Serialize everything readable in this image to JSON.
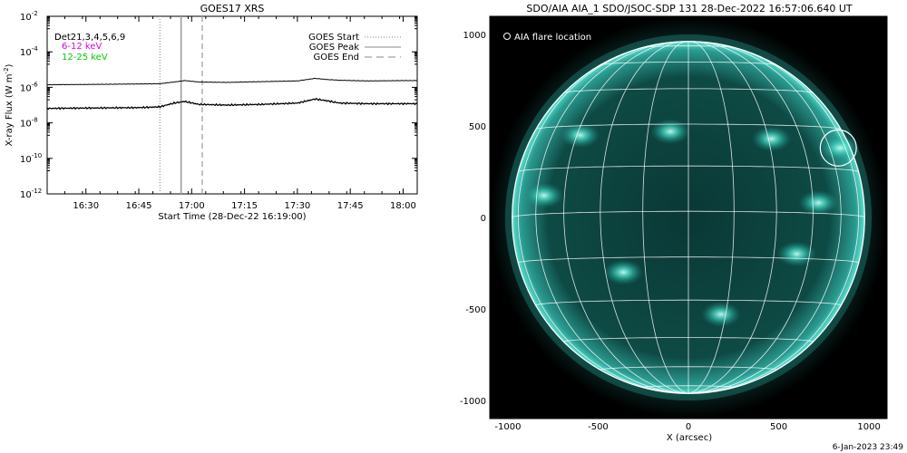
{
  "chart_data": [
    {
      "type": "line",
      "title": "GOES17 XRS",
      "xlabel": "Start Time (28-Dec-22 16:19:00)",
      "ylabel": "X-ray Flux (W m",
      "ylabel_sup": "-2",
      "ylabel_close": ")",
      "xlim": [
        "16:19",
        "18:04"
      ],
      "ylim": [
        1e-12,
        0.01
      ],
      "yscale": "log",
      "x_ticks": [
        "16:30",
        "16:45",
        "17:00",
        "17:15",
        "17:30",
        "17:45",
        "18:00"
      ],
      "y_ticks": [
        {
          "value": 0.01,
          "exp": "-2"
        },
        {
          "value": 0.0001,
          "exp": "-4"
        },
        {
          "value": 1e-06,
          "exp": "-6"
        },
        {
          "value": 1e-08,
          "exp": "-8"
        },
        {
          "value": 1e-10,
          "exp": "-10"
        },
        {
          "value": 1e-12,
          "exp": "-12"
        }
      ],
      "tick_base": "10",
      "legend_left": [
        {
          "text": "D",
          "color": "#000000"
        },
        {
          "text": "Det21,3,4,5,6,9",
          "color": "#000000"
        },
        {
          "text": "6-12 keV",
          "color": "#dd00dd"
        },
        {
          "text": "12-25 keV",
          "color": "#00cc00"
        }
      ],
      "legend_right": [
        {
          "text": "GOES Start",
          "style": "dotted"
        },
        {
          "text": "GOES Peak",
          "style": "solid"
        },
        {
          "text": "GOES End",
          "style": "dashed"
        }
      ],
      "markers": {
        "start": "16:51",
        "peak": "16:57",
        "end": "17:03"
      },
      "series": [
        {
          "name": "",
          "x": [
            "16:19",
            "16:30",
            "16:45",
            "16:51",
            "16:55",
            "16:58",
            "17:02",
            "17:10",
            "17:20",
            "17:30",
            "17:35",
            "17:38",
            "17:42",
            "17:50",
            "18:00",
            "18:04"
          ],
          "y": [
            1.4e-06,
            1.45e-06,
            1.55e-06,
            1.6e-06,
            2e-06,
            2.4e-06,
            2e-06,
            1.9e-06,
            2.1e-06,
            2.3e-06,
            3.2e-06,
            2.8e-06,
            2.5e-06,
            2.3e-06,
            2.4e-06,
            2.4e-06
          ]
        },
        {
          "name": "",
          "x": [
            "16:19",
            "16:30",
            "16:45",
            "16:51",
            "16:55",
            "16:58",
            "17:02",
            "17:10",
            "17:20",
            "17:30",
            "17:35",
            "17:38",
            "17:42",
            "17:50",
            "18:00",
            "18:04"
          ],
          "y": [
            6.5e-08,
            6.8e-08,
            7.2e-08,
            8e-08,
            1.3e-07,
            1.6e-07,
            1.1e-07,
            1e-07,
            1.1e-07,
            1.3e-07,
            2.2e-07,
            1.8e-07,
            1.3e-07,
            1.2e-07,
            1.2e-07,
            1.2e-07
          ]
        }
      ]
    },
    {
      "type": "scatter",
      "title": "SDO/AIA AIA_1 SDO/JSOC-SDP 131 28-Dec-2022 16:57:06.640 UT",
      "xlabel": "X (arcsec)",
      "ylabel": "",
      "xlim": [
        -1100,
        1100
      ],
      "ylim": [
        -1100,
        1100
      ],
      "x_ticks": [
        -1000,
        -500,
        0,
        500,
        1000
      ],
      "y_ticks": [
        1000,
        500,
        0,
        -500,
        -1000
      ],
      "legend": "AIA flare location",
      "legend_placement": "top-left",
      "solar_radius": 976,
      "flare": {
        "x": 830,
        "y": 380,
        "r": 100
      },
      "active_regions": [
        {
          "x": 840,
          "y": 380
        },
        {
          "x": -600,
          "y": 450
        },
        {
          "x": -100,
          "y": 470
        },
        {
          "x": 460,
          "y": 430
        },
        {
          "x": 720,
          "y": 80
        },
        {
          "x": -360,
          "y": -300
        },
        {
          "x": 180,
          "y": -530
        },
        {
          "x": -800,
          "y": 120
        },
        {
          "x": 600,
          "y": -200
        }
      ],
      "footer": "6-Jan-2023 23:49"
    }
  ]
}
